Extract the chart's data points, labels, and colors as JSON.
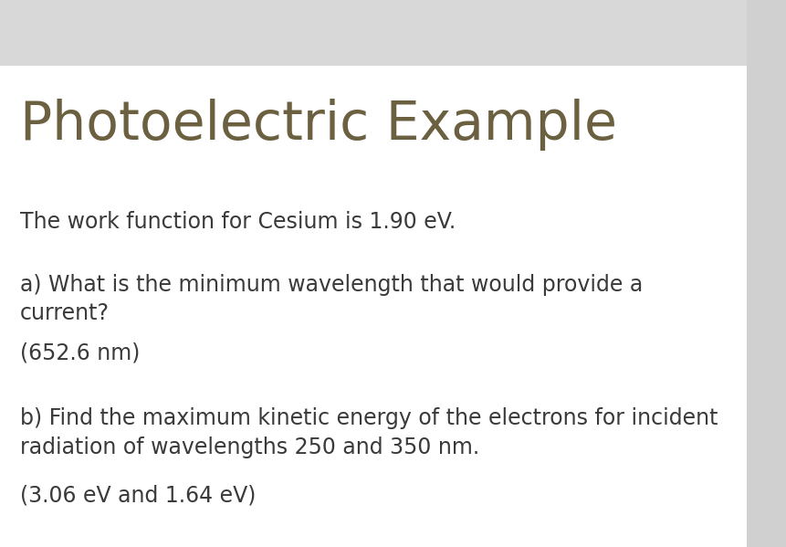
{
  "title": "Photoelectric Example",
  "title_color": "#6b6040",
  "title_fontsize": 42,
  "body_color": "#3a3a3a",
  "body_fontsize": 17,
  "background_top": "#d8d8d8",
  "background_main": "#ffffff",
  "background_right": "#d0d0d0",
  "lines": [
    "The work function for Cesium is 1.90 eV.",
    "a) What is the minimum wavelength that would provide a\ncurrent?",
    "(652.6 nm)",
    "b) Find the maximum kinetic energy of the electrons for incident\nradiation of wavelengths 250 and 350 nm.",
    "(3.06 eV and 1.64 eV)"
  ]
}
